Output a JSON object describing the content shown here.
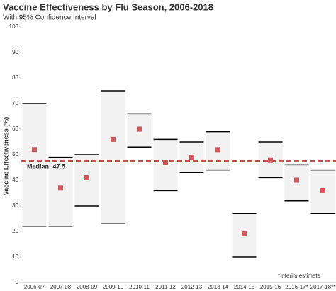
{
  "chart_data": {
    "type": "interval",
    "title": "Vaccine Effectiveness by Flu Season, 2006-2018",
    "subtitle": "With 95% Confidence Interval",
    "y_label": "Vaccine Effectiveness (%)",
    "annotation": "*Interim estimate",
    "categories": [
      "2006-07",
      "2007-08",
      "2008-09",
      "2009-10",
      "2010-11",
      "2011-12",
      "2012-13",
      "2013-14",
      "2014-15",
      "2015-16",
      "2016-17*",
      "2017-18**"
    ],
    "values": [
      52,
      37,
      41,
      56,
      60,
      47,
      49,
      52,
      19,
      48,
      40,
      36
    ],
    "lower": [
      22,
      22,
      30,
      23,
      53,
      36,
      43,
      44,
      10,
      41,
      32,
      27
    ],
    "upper": [
      70,
      49,
      50,
      75,
      66,
      56,
      55,
      59,
      27,
      55,
      46,
      44
    ],
    "median": 47.5,
    "median_label": "Median: 47.5",
    "color": "#d0575a",
    "median_color": "#c0504d",
    "interval_color": "#f2f2f2",
    "ylim": [
      0,
      100
    ],
    "yticks": [
      0,
      10,
      20,
      30,
      40,
      50,
      60,
      70,
      80,
      90,
      100
    ]
  }
}
